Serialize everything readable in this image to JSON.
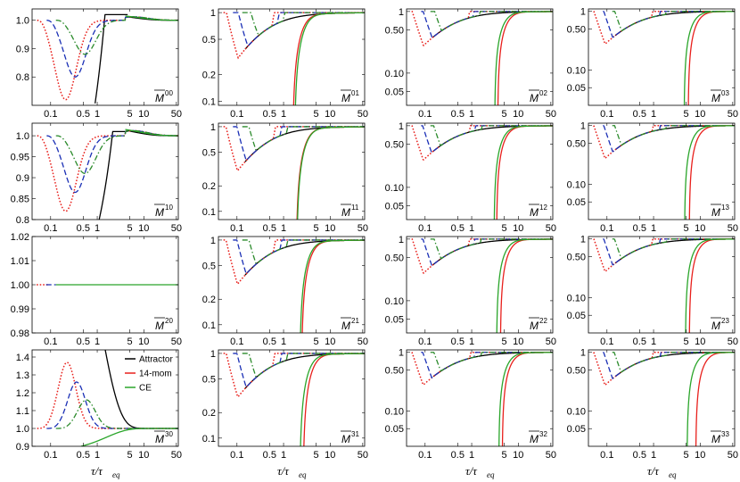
{
  "chart_data": {
    "type": "line",
    "layout": "4x4 panel grid",
    "x_scale": "log",
    "x_ticks": [
      0.1,
      0.5,
      1,
      5,
      10,
      50
    ],
    "x_tick_labels": [
      "0.1",
      "0.5",
      "1",
      "5",
      "10",
      "50"
    ],
    "xlim": [
      0.04,
      55
    ],
    "x_axis_label": {
      "main": "τ/τ",
      "sub": "eq"
    },
    "legend": {
      "placement": "inside panel M30, top-right",
      "entries": [
        {
          "label": "Attractor",
          "color": "#000000",
          "style": "solid"
        },
        {
          "label": "14-mom",
          "color": "#e8201c",
          "style": "solid"
        },
        {
          "label": "CE",
          "color": "#2aa52a",
          "style": "solid"
        }
      ]
    },
    "unlabeled_curves": [
      {
        "color": "#e8201c",
        "style": "dotted",
        "start_tau": 0.05
      },
      {
        "color": "#1a2fb5",
        "style": "dashed",
        "start_tau": 0.08
      },
      {
        "color": "#2a8a2a",
        "style": "dashdot",
        "start_tau": 0.13
      }
    ],
    "panels": [
      {
        "id": "M00",
        "label": "M",
        "sup": "00",
        "scale": "linear",
        "ylim": [
          0.7,
          1.04
        ],
        "yticks": [
          0.8,
          0.9,
          1.0
        ],
        "ytick_labels": [
          "0.8",
          "0.9",
          "1.0"
        ],
        "kind": "M00"
      },
      {
        "id": "M01",
        "label": "M",
        "sup": "01",
        "scale": "log",
        "ylim": [
          0.09,
          1.1
        ],
        "yticks": [
          0.1,
          0.2,
          0.5,
          1
        ],
        "ytick_labels": [
          "0.1",
          "0.2",
          "0.5",
          "1"
        ],
        "kind": "dip",
        "minLevels": [
          0.12,
          0.22,
          0.36
        ],
        "ceStart": 1.7,
        "momStart": 1.55
      },
      {
        "id": "M02",
        "label": "M",
        "sup": "02",
        "scale": "log",
        "ylim": [
          0.03,
          1.1
        ],
        "yticks": [
          0.05,
          0.1,
          0.5,
          1
        ],
        "ytick_labels": [
          "0.05",
          "0.10",
          "0.50",
          "1"
        ],
        "kind": "dip",
        "minLevels": [
          0.035,
          0.085,
          0.15
        ],
        "ceStart": 3.1,
        "momStart": 3.6
      },
      {
        "id": "M03",
        "label": "M",
        "sup": "03",
        "scale": "log",
        "ylim": [
          0.025,
          1.1
        ],
        "yticks": [
          0.05,
          0.1,
          0.5,
          1
        ],
        "ytick_labels": [
          "0.05",
          "0.10",
          "0.50",
          "1"
        ],
        "kind": "dip",
        "minLevels": [
          0.028,
          0.04,
          0.08
        ],
        "ceStart": 4.5,
        "momStart": 5.5
      },
      {
        "id": "M10",
        "label": "M",
        "sup": "10",
        "scale": "linear",
        "ylim": [
          0.8,
          1.03
        ],
        "yticks": [
          0.8,
          0.85,
          0.9,
          0.95,
          1.0
        ],
        "ytick_labels": [
          "0.8",
          "0.85",
          "0.9",
          "0.95",
          "1.0"
        ],
        "kind": "M10"
      },
      {
        "id": "M11",
        "label": "M",
        "sup": "11",
        "scale": "log",
        "ylim": [
          0.08,
          1.1
        ],
        "yticks": [
          0.1,
          0.2,
          0.5,
          1
        ],
        "ytick_labels": [
          "0.1",
          "0.2",
          "0.5",
          "1"
        ],
        "kind": "dip",
        "minLevels": [
          0.1,
          0.16,
          0.26
        ],
        "ceStart": 1.9,
        "momStart": 1.85
      },
      {
        "id": "M12",
        "label": "M",
        "sup": "12",
        "scale": "log",
        "ylim": [
          0.03,
          1.1
        ],
        "yticks": [
          0.05,
          0.1,
          0.5,
          1
        ],
        "ytick_labels": [
          "0.05",
          "0.10",
          "0.50",
          "1"
        ],
        "kind": "dip",
        "minLevels": [
          0.03,
          0.065,
          0.11
        ],
        "ceStart": 3.0,
        "momStart": 3.4
      },
      {
        "id": "M13",
        "label": "M",
        "sup": "13",
        "scale": "log",
        "ylim": [
          0.025,
          1.1
        ],
        "yticks": [
          0.05,
          0.1,
          0.5,
          1
        ],
        "ytick_labels": [
          "0.05",
          "0.10",
          "0.50",
          "1"
        ],
        "kind": "dip",
        "minLevels": [
          0.025,
          0.04,
          0.075
        ],
        "ceStart": 4.6,
        "momStart": 5.8
      },
      {
        "id": "M20",
        "label": "M",
        "sup": "20",
        "scale": "linear",
        "ylim": [
          0.98,
          1.02
        ],
        "yticks": [
          0.98,
          0.99,
          1.0,
          1.01,
          1.02
        ],
        "ytick_labels": [
          "0.98",
          "0.99",
          "1.00",
          "1.01",
          "1.02"
        ],
        "kind": "flat"
      },
      {
        "id": "M21",
        "label": "M",
        "sup": "21",
        "scale": "log",
        "ylim": [
          0.08,
          1.1
        ],
        "yticks": [
          0.1,
          0.2,
          0.5,
          1
        ],
        "ytick_labels": [
          "0.1",
          "0.2",
          "0.5",
          "1"
        ],
        "kind": "dip",
        "minLevels": [
          0.1,
          0.16,
          0.26
        ],
        "ceStart": 2.2,
        "momStart": 2.4
      },
      {
        "id": "M22",
        "label": "M",
        "sup": "22",
        "scale": "log",
        "ylim": [
          0.03,
          1.1
        ],
        "yticks": [
          0.05,
          0.1,
          0.5,
          1
        ],
        "ytick_labels": [
          "0.05",
          "0.10",
          "0.50",
          "1"
        ],
        "kind": "dip",
        "minLevels": [
          0.035,
          0.075,
          0.13
        ],
        "ceStart": 3.4,
        "momStart": 4.1
      },
      {
        "id": "M23",
        "label": "M",
        "sup": "23",
        "scale": "log",
        "ylim": [
          0.025,
          1.1
        ],
        "yticks": [
          0.05,
          0.1,
          0.5,
          1
        ],
        "ytick_labels": [
          "0.05",
          "0.10",
          "0.50",
          "1"
        ],
        "kind": "dip",
        "minLevels": [
          0.028,
          0.04,
          0.07
        ],
        "ceStart": 4.8,
        "momStart": 5.8
      },
      {
        "id": "M30",
        "label": "M",
        "sup": "30",
        "scale": "linear",
        "ylim": [
          0.9,
          1.44
        ],
        "yticks": [
          0.9,
          1.0,
          1.1,
          1.2,
          1.3,
          1.4
        ],
        "ytick_labels": [
          "0.9",
          "1.0",
          "1.1",
          "1.2",
          "1.3",
          "1.4"
        ],
        "kind": "M30"
      },
      {
        "id": "M31",
        "label": "M",
        "sup": "31",
        "scale": "log",
        "ylim": [
          0.08,
          1.1
        ],
        "yticks": [
          0.1,
          0.2,
          0.5,
          1
        ],
        "ytick_labels": [
          "0.1",
          "0.2",
          "0.5",
          "1"
        ],
        "kind": "dip",
        "minLevels": [
          0.11,
          0.16,
          0.26
        ],
        "ceStart": 2.2,
        "momStart": 2.6
      },
      {
        "id": "M32",
        "label": "M",
        "sup": "32",
        "scale": "log",
        "ylim": [
          0.025,
          1.1
        ],
        "yticks": [
          0.05,
          0.1,
          0.5,
          1
        ],
        "ytick_labels": [
          "0.05",
          "0.10",
          "0.50",
          "1"
        ],
        "kind": "dip",
        "minLevels": [
          0.028,
          0.07,
          0.12
        ],
        "ceStart": 3.8,
        "momStart": 4.5
      },
      {
        "id": "M33",
        "label": "M",
        "sup": "33",
        "scale": "log",
        "ylim": [
          0.025,
          1.1
        ],
        "yticks": [
          0.05,
          0.1,
          0.5,
          1
        ],
        "ytick_labels": [
          "0.05",
          "0.10",
          "0.50",
          "1"
        ],
        "kind": "dip",
        "minLevels": [
          0.025,
          0.035,
          0.06
        ],
        "ceStart": 5.2,
        "momStart": 8.0
      }
    ]
  }
}
